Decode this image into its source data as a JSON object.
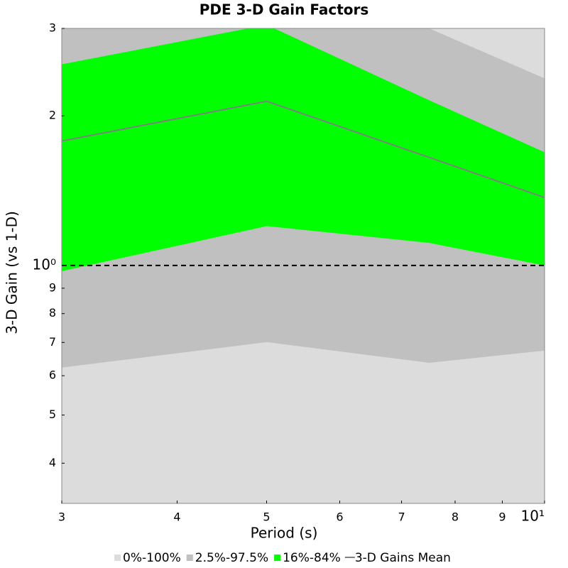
{
  "chart_data": {
    "type": "band",
    "title": "PDE 3-D Gain Factors",
    "xlabel": "Period (s)",
    "ylabel": "3-D Gain (vs 1-D)",
    "log_x": true,
    "log_y": true,
    "x": [
      3,
      5,
      7.5,
      10
    ],
    "xlim": [
      3,
      10
    ],
    "xticks": [
      3,
      4,
      5,
      6,
      7,
      8,
      9,
      {
        "value": 10,
        "label": "10¹"
      }
    ],
    "ylim": [
      0.332,
      3
    ],
    "yticks": [
      {
        "value": 0.4,
        "label": "4"
      },
      {
        "value": 0.5,
        "label": "5"
      },
      {
        "value": 0.6,
        "label": "6"
      },
      {
        "value": 0.7,
        "label": "7"
      },
      {
        "value": 0.8,
        "label": "8"
      },
      {
        "value": 0.9,
        "label": "9"
      },
      {
        "value": 1,
        "label": "10⁰"
      },
      2,
      3
    ],
    "hline": 1,
    "series": [
      {
        "name": "0%-100%",
        "color": "#dcdcdc",
        "kind": "band",
        "lower": [
          0.3,
          0.3,
          0.3,
          0.3
        ],
        "upper": [
          3.5,
          3.6,
          3.3,
          3.4
        ]
      },
      {
        "name": "2.5%-97.5%",
        "color": "#c0c0c0",
        "kind": "band",
        "lower": [
          0.623,
          0.701,
          0.637,
          0.674
        ],
        "upper": [
          3.2,
          3.4,
          3.0,
          2.38
        ]
      },
      {
        "name": "16%-84%",
        "color": "#00ff00",
        "kind": "band",
        "lower": [
          0.974,
          1.2,
          1.11,
          1.0
        ],
        "upper": [
          2.54,
          3.05,
          2.15,
          1.69
        ]
      },
      {
        "name": "3-D Gains Mean",
        "color": "#808080",
        "kind": "line",
        "values": [
          1.78,
          2.14,
          1.65,
          1.37
        ]
      }
    ],
    "legend": "bottom"
  }
}
